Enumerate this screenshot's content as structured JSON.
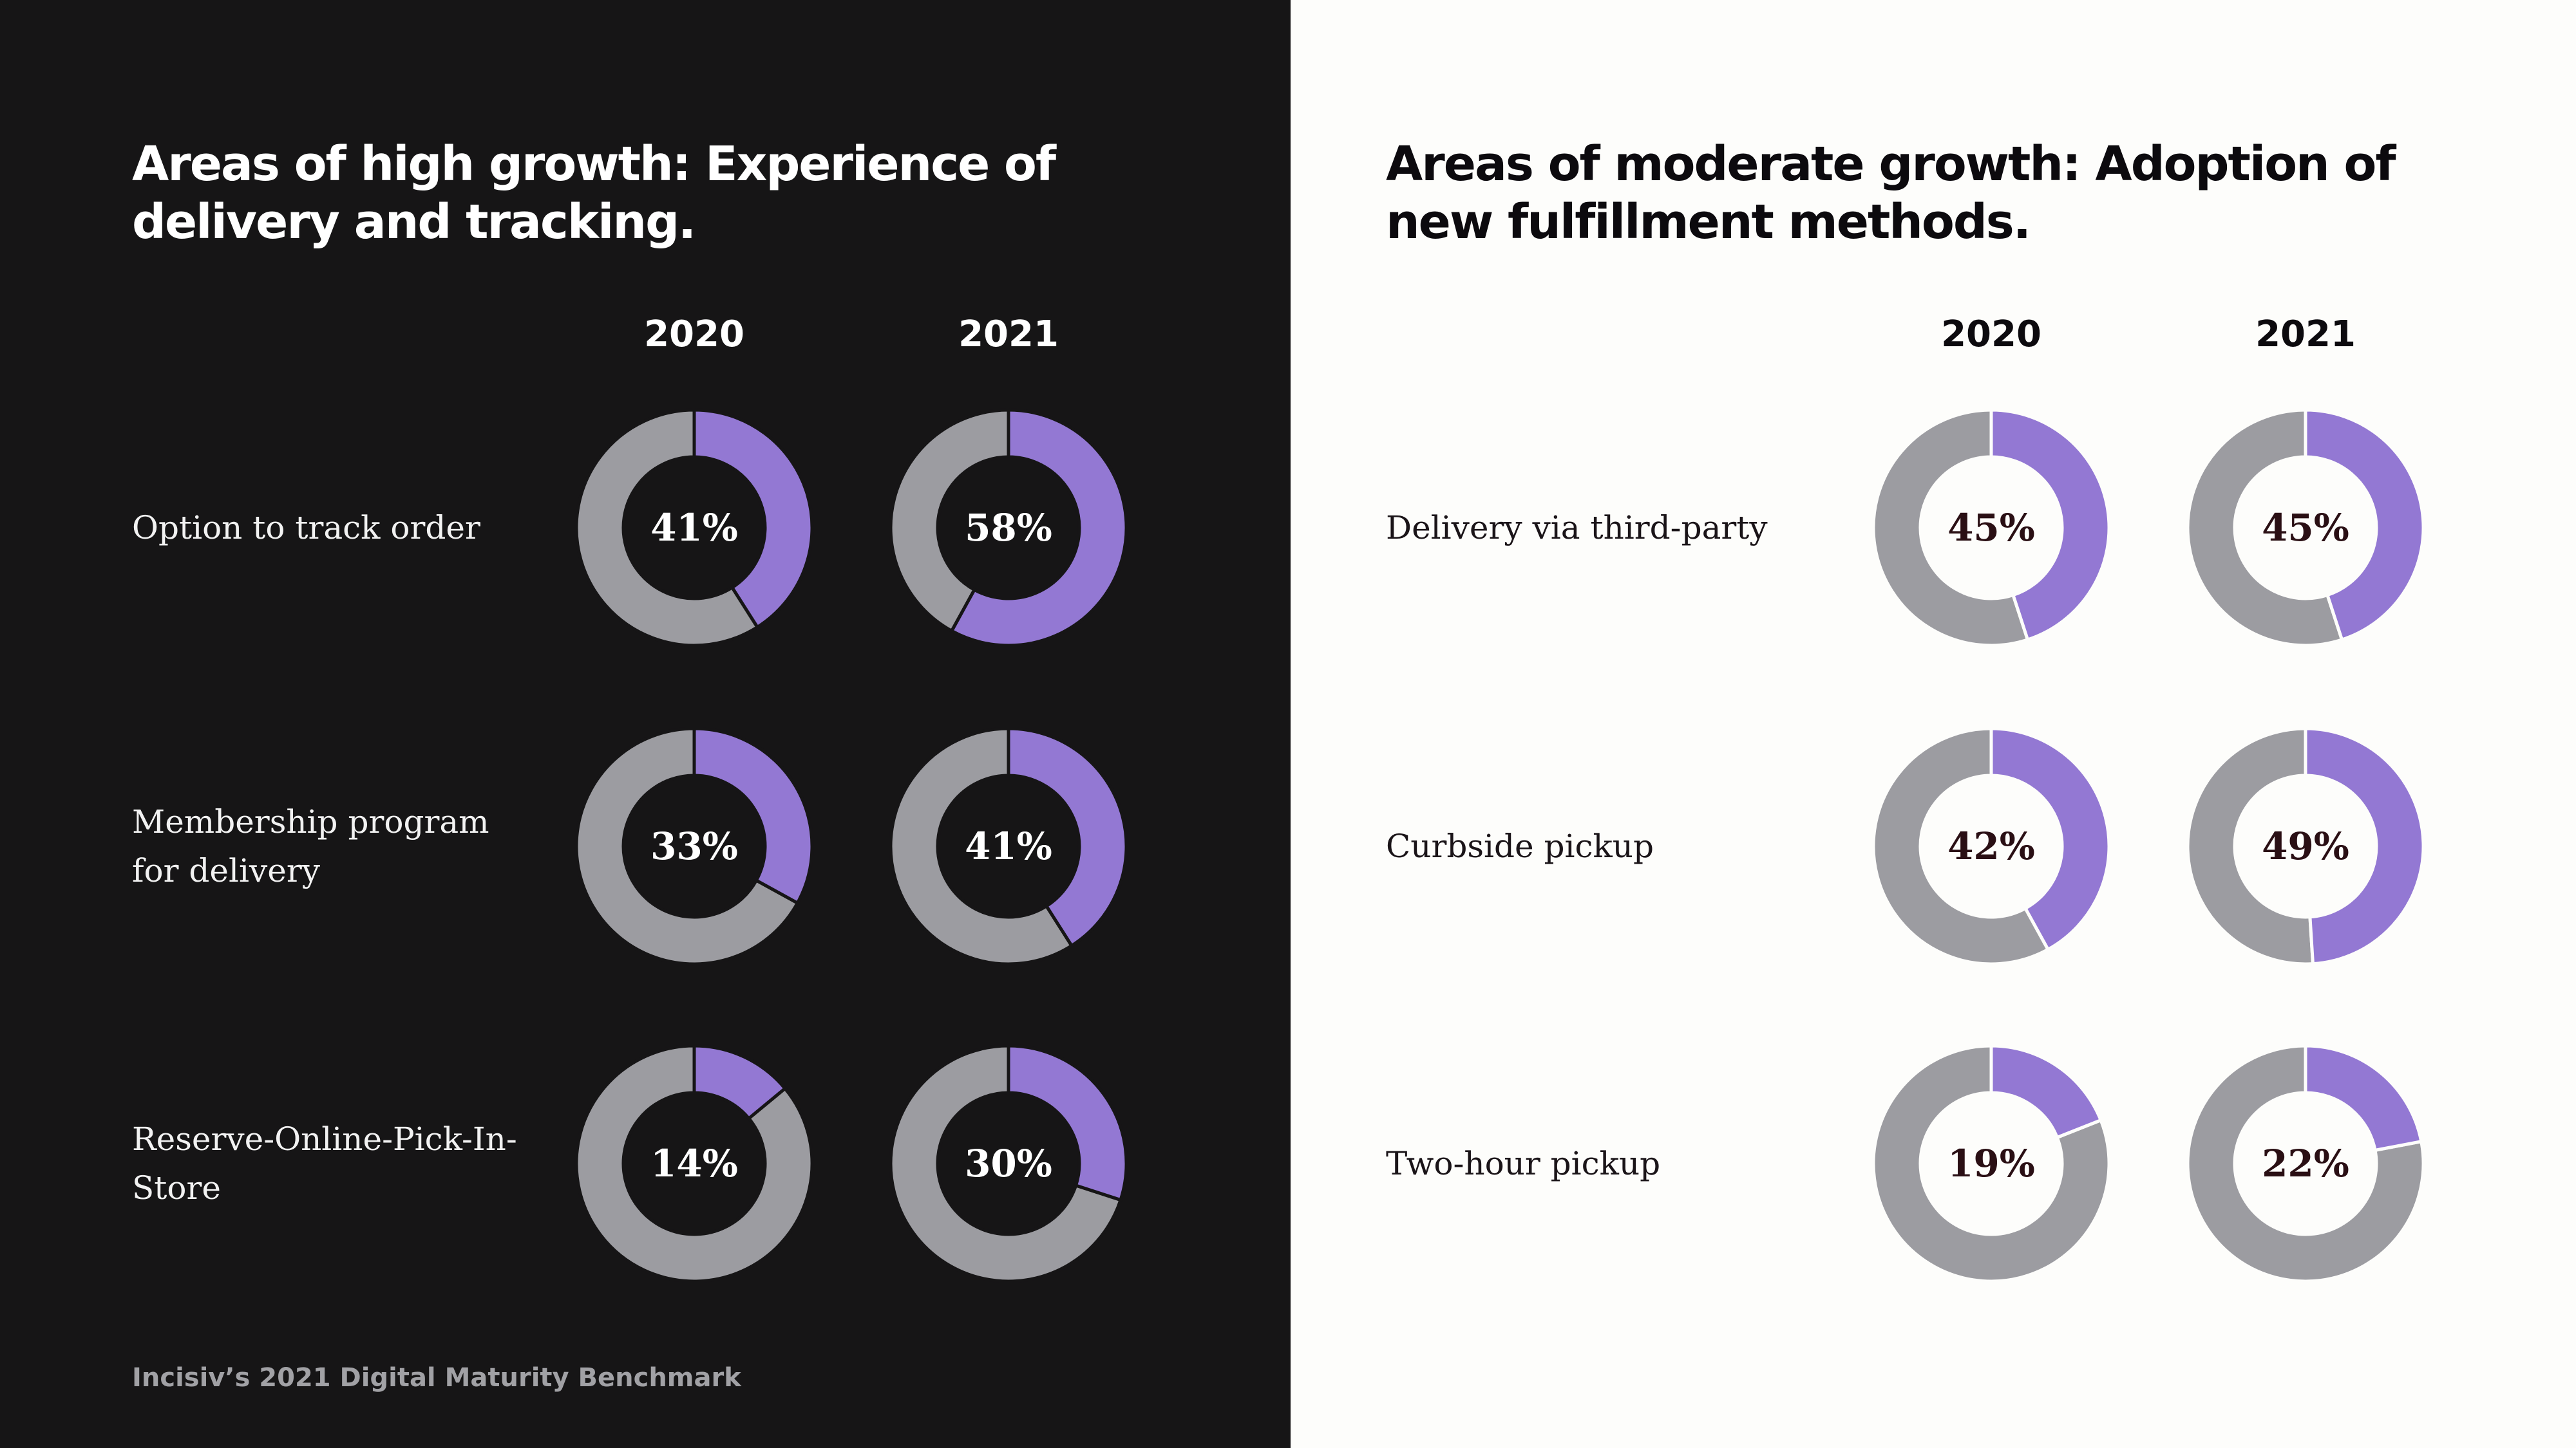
{
  "colors": {
    "highlight": "#9378d3",
    "remainder": "#9c9ca1",
    "left_bg": "#161516",
    "right_bg": "#fdfdfb"
  },
  "left_panel": {
    "title": "Areas of high growth: Experience of delivery and tracking.",
    "year_labels": [
      "2020",
      "2021"
    ],
    "footer": "Incisiv’s 2021 Digital Maturity Benchmark"
  },
  "right_panel": {
    "title": "Areas of moderate growth: Adoption of new fulfillment methods.",
    "year_labels": [
      "2020",
      "2021"
    ]
  },
  "chart_data": [
    {
      "type": "pie",
      "title": "Areas of high growth: Experience of delivery and tracking.",
      "categories": [
        "Option to track order",
        "Membership program for delivery",
        "Reserve-Online-Pick-In-Store"
      ],
      "series": [
        {
          "name": "2020",
          "values": [
            41,
            33,
            14
          ],
          "labels": [
            "41%",
            "33%",
            "14%"
          ]
        },
        {
          "name": "2021",
          "values": [
            58,
            41,
            30
          ],
          "labels": [
            "58%",
            "41%",
            "30%"
          ]
        }
      ]
    },
    {
      "type": "pie",
      "title": "Areas of moderate growth: Adoption of new fulfillment methods.",
      "categories": [
        "Delivery via third-party",
        "Curbside pickup",
        "Two-hour pickup"
      ],
      "series": [
        {
          "name": "2020",
          "values": [
            45,
            42,
            19
          ],
          "labels": [
            "45%",
            "42%",
            "19%"
          ]
        },
        {
          "name": "2021",
          "values": [
            45,
            49,
            22
          ],
          "labels": [
            "45%",
            "49%",
            "22%"
          ]
        }
      ]
    }
  ]
}
